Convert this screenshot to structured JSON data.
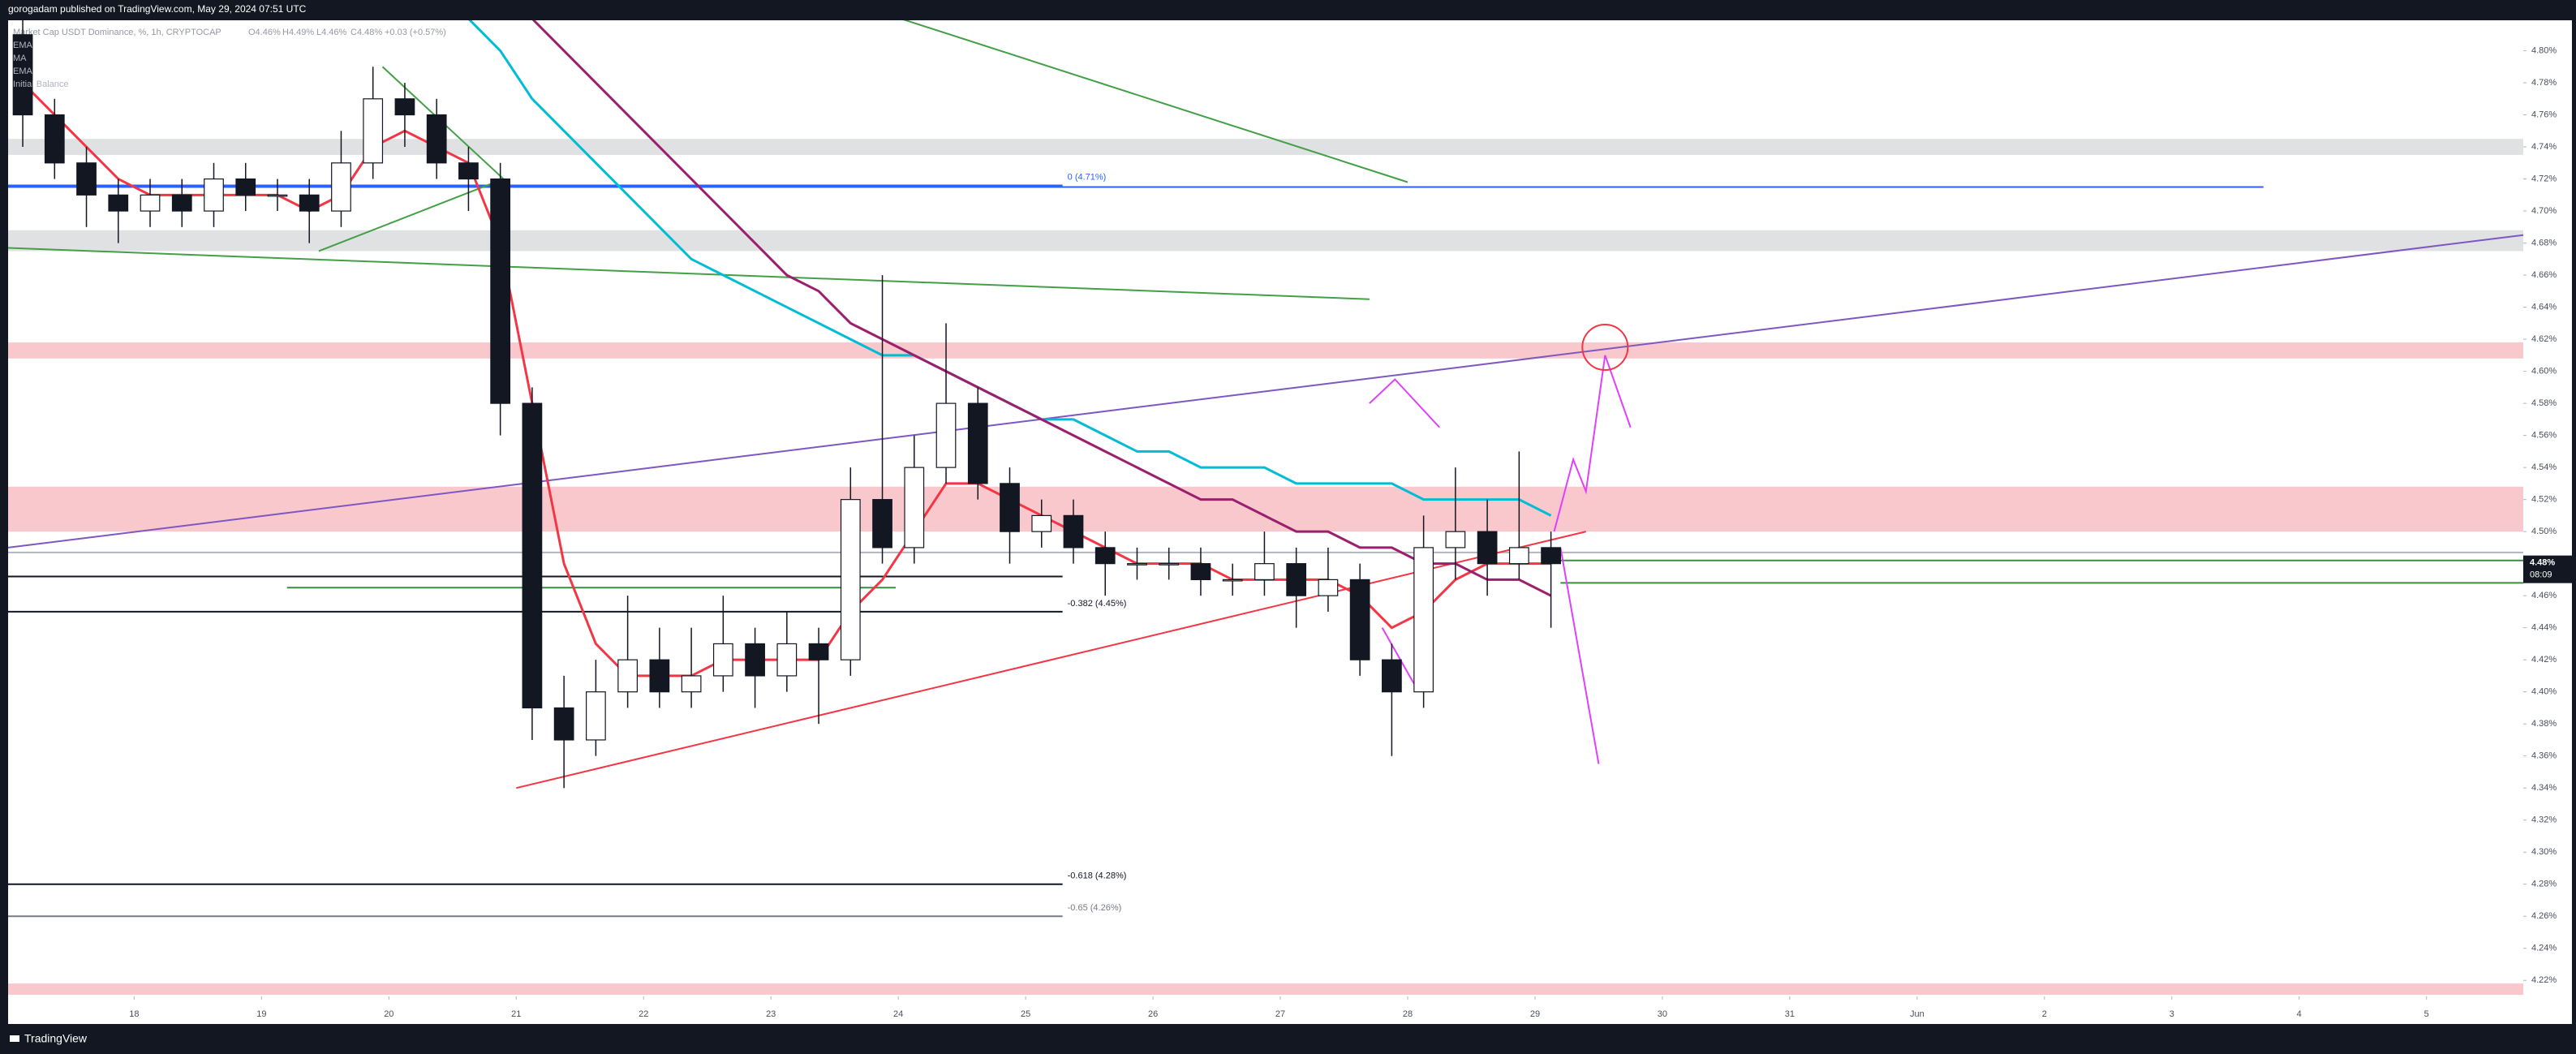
{
  "header": {
    "text": "gorogadam published on TradingView.com, May 29, 2024 07:51 UTC"
  },
  "chart_data": {
    "type": "candlestick",
    "title": "Market Cap USDT Dominance, %, 1h, CRYPTOCAP",
    "ohlc_labels": [
      "O4.46%",
      "H4.49%",
      "L4.46%",
      "C4.48%",
      "+0.03 (+0.57%)"
    ],
    "indicator_labels": [
      "EMA",
      "MA",
      "EMA",
      "Initial Balance"
    ],
    "x": [
      17.125,
      17.375,
      17.625,
      17.875,
      18.125,
      18.375,
      18.625,
      18.875,
      19.125,
      19.375,
      19.625,
      19.875,
      20.125,
      20.375,
      20.625,
      20.875,
      21.125,
      21.375,
      21.625,
      21.875,
      22.125,
      22.375,
      22.625,
      22.875,
      23.125,
      23.375,
      23.625,
      23.875,
      24.125,
      24.375,
      24.625,
      24.875,
      25.125,
      25.375,
      25.625,
      25.875,
      26.125,
      26.375,
      26.625,
      26.875,
      27.125,
      27.375,
      27.625,
      27.875,
      28.125,
      28.375,
      28.625,
      28.875,
      29.125
    ],
    "open": [
      4.81,
      4.76,
      4.73,
      4.71,
      4.7,
      4.71,
      4.7,
      4.72,
      4.71,
      4.71,
      4.7,
      4.73,
      4.77,
      4.76,
      4.73,
      4.72,
      4.58,
      4.39,
      4.37,
      4.4,
      4.42,
      4.4,
      4.41,
      4.43,
      4.41,
      4.43,
      4.42,
      4.52,
      4.49,
      4.54,
      4.58,
      4.53,
      4.5,
      4.51,
      4.49,
      4.48,
      4.48,
      4.48,
      4.47,
      4.47,
      4.48,
      4.46,
      4.47,
      4.42,
      4.4,
      4.49,
      4.5,
      4.48,
      4.49
    ],
    "high": [
      4.82,
      4.77,
      4.74,
      4.72,
      4.72,
      4.72,
      4.73,
      4.73,
      4.72,
      4.72,
      4.75,
      4.79,
      4.78,
      4.77,
      4.74,
      4.73,
      4.59,
      4.41,
      4.42,
      4.46,
      4.44,
      4.44,
      4.46,
      4.44,
      4.45,
      4.44,
      4.54,
      4.66,
      4.56,
      4.63,
      4.59,
      4.54,
      4.52,
      4.52,
      4.5,
      4.49,
      4.49,
      4.49,
      4.48,
      4.5,
      4.49,
      4.49,
      4.48,
      4.43,
      4.51,
      4.54,
      4.52,
      4.55,
      4.5
    ],
    "low": [
      4.74,
      4.72,
      4.69,
      4.68,
      4.69,
      4.69,
      4.69,
      4.7,
      4.7,
      4.68,
      4.69,
      4.72,
      4.74,
      4.72,
      4.7,
      4.56,
      4.37,
      4.34,
      4.36,
      4.39,
      4.39,
      4.39,
      4.4,
      4.39,
      4.4,
      4.38,
      4.41,
      4.48,
      4.48,
      4.53,
      4.52,
      4.48,
      4.49,
      4.48,
      4.46,
      4.47,
      4.47,
      4.46,
      4.46,
      4.46,
      4.44,
      4.45,
      4.41,
      4.36,
      4.39,
      4.47,
      4.46,
      4.47,
      4.44
    ],
    "close": [
      4.76,
      4.73,
      4.71,
      4.7,
      4.71,
      4.7,
      4.72,
      4.71,
      4.71,
      4.7,
      4.73,
      4.77,
      4.76,
      4.73,
      4.72,
      4.58,
      4.39,
      4.37,
      4.4,
      4.42,
      4.4,
      4.41,
      4.43,
      4.41,
      4.43,
      4.42,
      4.52,
      4.49,
      4.54,
      4.58,
      4.53,
      4.5,
      4.51,
      4.49,
      4.48,
      4.48,
      4.48,
      4.47,
      4.47,
      4.48,
      4.46,
      4.47,
      4.42,
      4.4,
      4.49,
      4.5,
      4.48,
      4.49,
      4.48
    ],
    "indicators": [
      {
        "name": "EMA",
        "color": "#f23645",
        "values": [
          4.78,
          4.76,
          4.74,
          4.72,
          4.71,
          4.71,
          4.71,
          4.71,
          4.71,
          4.7,
          4.71,
          4.74,
          4.75,
          4.74,
          4.73,
          4.68,
          4.58,
          4.48,
          4.43,
          4.41,
          4.41,
          4.41,
          4.42,
          4.42,
          4.42,
          4.42,
          4.45,
          4.47,
          4.5,
          4.53,
          4.53,
          4.52,
          4.51,
          4.5,
          4.49,
          4.48,
          4.48,
          4.48,
          4.47,
          4.47,
          4.47,
          4.47,
          4.46,
          4.44,
          4.45,
          4.47,
          4.48,
          4.48,
          4.48
        ]
      },
      {
        "name": "MA",
        "color": "#00bcd4",
        "values": [
          null,
          null,
          null,
          null,
          null,
          null,
          null,
          null,
          null,
          null,
          null,
          null,
          null,
          null,
          4.82,
          4.8,
          4.77,
          4.75,
          4.73,
          4.71,
          4.69,
          4.67,
          4.66,
          4.65,
          4.64,
          4.63,
          4.62,
          4.61,
          4.61,
          4.6,
          4.59,
          4.58,
          4.57,
          4.57,
          4.56,
          4.55,
          4.55,
          4.54,
          4.54,
          4.54,
          4.53,
          4.53,
          4.53,
          4.53,
          4.52,
          4.52,
          4.52,
          4.52,
          4.51
        ]
      },
      {
        "name": "EMA",
        "color": "#9c1f6e",
        "values": [
          null,
          null,
          null,
          null,
          null,
          null,
          null,
          null,
          null,
          null,
          null,
          null,
          null,
          null,
          null,
          null,
          4.82,
          4.8,
          4.78,
          4.76,
          4.74,
          4.72,
          4.7,
          4.68,
          4.66,
          4.65,
          4.63,
          4.62,
          4.61,
          4.6,
          4.59,
          4.58,
          4.57,
          4.56,
          4.55,
          4.54,
          4.53,
          4.52,
          4.52,
          4.51,
          4.5,
          4.5,
          4.49,
          4.49,
          4.48,
          4.48,
          4.47,
          4.47,
          4.46
        ]
      }
    ],
    "zones": [
      {
        "from": 4.745,
        "to": 4.735,
        "color": "#e0e1e3"
      },
      {
        "from": 4.688,
        "to": 4.675,
        "color": "#e0e1e3"
      },
      {
        "from": 4.618,
        "to": 4.608,
        "color": "#f9c8cc"
      },
      {
        "from": 4.528,
        "to": 4.5,
        "color": "#f9c8cc"
      },
      {
        "from": 4.218,
        "to": 4.211,
        "color": "#f9c8cc"
      }
    ],
    "levels": [
      {
        "value": 4.715,
        "x": [
          17.01,
          34.72
        ],
        "color": "#2962ff"
      },
      {
        "value": 4.716,
        "label": "0 (4.71%)",
        "x": [
          17.01,
          25.29
        ],
        "color": "#2962ff"
      },
      {
        "value": 4.487,
        "x": [
          17.01,
          36.76
        ],
        "color": "#b2b5be"
      },
      {
        "value": 4.472,
        "x": [
          17.01,
          25.29
        ],
        "color": "#131722"
      },
      {
        "value": 4.465,
        "x": [
          19.2,
          23.98
        ],
        "color": "#388e3c"
      },
      {
        "value": 4.45,
        "label": "-0.382 (4.45%)",
        "x": [
          17.01,
          25.29
        ],
        "color": "#131722"
      },
      {
        "value": 4.28,
        "label": "-0.618 (4.28%)",
        "x": [
          17.01,
          25.29
        ],
        "color": "#131722"
      },
      {
        "value": 4.26,
        "label": "-0.65 (4.26%)",
        "x": [
          17.01,
          25.29
        ],
        "color": "#787b86"
      },
      {
        "value": 4.482,
        "x": [
          29.2,
          36.76
        ],
        "color": "#388e3c"
      },
      {
        "value": 4.468,
        "x": [
          29.2,
          36.76
        ],
        "color": "#388e3c"
      }
    ],
    "trendlines": [
      {
        "x": [
          17.01,
          36.76
        ],
        "y": [
          4.49,
          4.685
        ],
        "color": "#7e57c2"
      },
      {
        "x": [
          21.0,
          29.4
        ],
        "y": [
          4.34,
          4.5
        ],
        "color": "#f23645"
      },
      {
        "x": [
          17.01,
          27.7
        ],
        "y": [
          4.677,
          4.645
        ],
        "color": "#43a047"
      },
      {
        "x": [
          24.02,
          28.0
        ],
        "y": [
          4.82,
          4.718
        ],
        "color": "#43a047"
      },
      {
        "x": [
          19.95,
          20.9
        ],
        "y": [
          4.79,
          4.72
        ],
        "color": "#43a047"
      },
      {
        "x": [
          19.45,
          20.9
        ],
        "y": [
          4.675,
          4.72
        ],
        "color": "#43a047"
      },
      {
        "x": [
          27.7,
          27.9,
          28.25
        ],
        "y": [
          4.58,
          4.595,
          4.565
        ],
        "color": "#e040fb"
      },
      {
        "x": [
          29.15,
          29.3,
          29.4,
          29.55,
          29.75
        ],
        "y": [
          4.5,
          4.545,
          4.525,
          4.61,
          4.565
        ],
        "color": "#e040fb"
      },
      {
        "x": [
          29.2,
          29.5
        ],
        "y": [
          4.49,
          4.355
        ],
        "color": "#e040fb"
      },
      {
        "x": [
          27.8,
          28.05
        ],
        "y": [
          4.44,
          4.405
        ],
        "color": "#e040fb"
      }
    ],
    "marker": {
      "x": 29.55,
      "y": 4.615,
      "color": "#f23645"
    },
    "last_price": {
      "value": 4.48,
      "label": "4.48%",
      "countdown": "08:09"
    },
    "xlim": [
      17.01,
      36.76
    ],
    "ylim": [
      4.21,
      4.819
    ],
    "xticks": [
      18,
      19,
      20,
      21,
      22,
      23,
      24,
      25,
      26,
      27,
      28,
      29,
      30,
      31,
      {
        "value": 32,
        "label": "Jun"
      },
      {
        "value": 33,
        "label": "2"
      },
      {
        "value": 34,
        "label": "3"
      },
      {
        "value": 35,
        "label": "4"
      },
      {
        "value": 36,
        "label": "5"
      }
    ],
    "yticks": [
      {
        "value": 4.22,
        "label": "4.22%"
      },
      {
        "value": 4.24,
        "label": "4.24%"
      },
      {
        "value": 4.26,
        "label": "4.26%"
      },
      {
        "value": 4.28,
        "label": "4.28%"
      },
      {
        "value": 4.3,
        "label": "4.30%"
      },
      {
        "value": 4.32,
        "label": "4.32%"
      },
      {
        "value": 4.34,
        "label": "4.34%"
      },
      {
        "value": 4.36,
        "label": "4.36%"
      },
      {
        "value": 4.38,
        "label": "4.38%"
      },
      {
        "value": 4.4,
        "label": "4.40%"
      },
      {
        "value": 4.42,
        "label": "4.42%"
      },
      {
        "value": 4.44,
        "label": "4.44%"
      },
      {
        "value": 4.46,
        "label": "4.46%"
      },
      {
        "value": 4.48,
        "label": "4.48%"
      },
      {
        "value": 4.5,
        "label": "4.50%"
      },
      {
        "value": 4.52,
        "label": "4.52%"
      },
      {
        "value": 4.54,
        "label": "4.54%"
      },
      {
        "value": 4.56,
        "label": "4.56%"
      },
      {
        "value": 4.58,
        "label": "4.58%"
      },
      {
        "value": 4.6,
        "label": "4.60%"
      },
      {
        "value": 4.62,
        "label": "4.62%"
      },
      {
        "value": 4.64,
        "label": "4.64%"
      },
      {
        "value": 4.66,
        "label": "4.66%"
      },
      {
        "value": 4.68,
        "label": "4.68%"
      },
      {
        "value": 4.7,
        "label": "4.70%"
      },
      {
        "value": 4.72,
        "label": "4.72%"
      },
      {
        "value": 4.74,
        "label": "4.74%"
      },
      {
        "value": 4.76,
        "label": "4.76%"
      },
      {
        "value": 4.78,
        "label": "4.78%"
      },
      {
        "value": 4.8,
        "label": "4.80%"
      }
    ]
  },
  "footer": {
    "brand": "TradingView"
  }
}
